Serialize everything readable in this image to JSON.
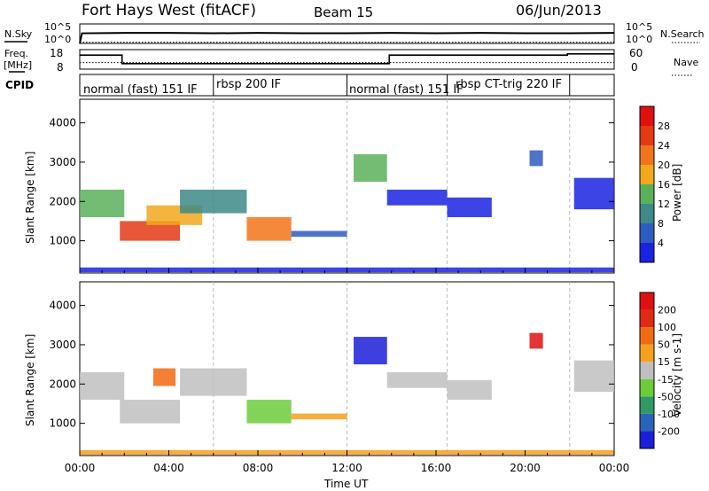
{
  "header": {
    "title": "Fort Hays West (fitACF)",
    "beam": "Beam 15",
    "date": "06/Jun/2013"
  },
  "strip_labels": {
    "nsky": "N.Sky",
    "nsearch": "N.Search",
    "freq": "Freq.",
    "freq_unit": "[MHz]",
    "nave": "Nave",
    "cpid": "CPID",
    "noise_ticks_left": [
      "10^5",
      "10^0"
    ],
    "noise_ticks_right": [
      "10^5",
      "10^0"
    ],
    "freq_ticks": [
      "18",
      "8"
    ],
    "nave_ticks": [
      "60",
      "0"
    ]
  },
  "cpid_segments": [
    {
      "label": "normal (fast) 151 IF",
      "start_h": 0,
      "end_h": 6
    },
    {
      "label": "rbsp 200 IF",
      "start_h": 6,
      "end_h": 12
    },
    {
      "label": "normal (fast) 151 IF",
      "start_h": 12,
      "end_h": 16.5
    },
    {
      "label": "rbsp CT-trig 220 IF",
      "start_h": 16.5,
      "end_h": 22
    },
    {
      "label": "",
      "start_h": 22,
      "end_h": 24
    }
  ],
  "chart_data": [
    {
      "type": "line",
      "name": "noise",
      "x_range_h": [
        0,
        24
      ],
      "series": [
        {
          "name": "N.Sky",
          "x_h": [
            0,
            0.1,
            2,
            4,
            6,
            8,
            10,
            12,
            14,
            16,
            18,
            20,
            22,
            24
          ],
          "log10": [
            0,
            2.6,
            2.7,
            2.7,
            2.6,
            2.7,
            2.6,
            2.6,
            2.7,
            2.6,
            2.7,
            2.6,
            2.6,
            2.7
          ]
        },
        {
          "name": "N.Search",
          "x_h": [
            0,
            24
          ],
          "log10": [
            0.3,
            0.3
          ]
        }
      ]
    },
    {
      "type": "line",
      "name": "freq_nave",
      "x_range_h": [
        0,
        24
      ],
      "series": [
        {
          "name": "Freq.",
          "ylim": [
            8,
            18
          ],
          "x_h": [
            0,
            1.9,
            1.9,
            13.9,
            13.9,
            21.9,
            21.9,
            24
          ],
          "values": [
            15.2,
            15.2,
            10.8,
            10.8,
            15.2,
            15.2,
            15.8,
            15.8
          ]
        },
        {
          "name": "Nave",
          "ylim": [
            0,
            60
          ],
          "x_h": [
            0,
            24
          ],
          "values": [
            20,
            20
          ]
        }
      ]
    },
    {
      "type": "heatmap",
      "name": "power",
      "title": "",
      "xlabel": "Time UT",
      "ylabel": "Slant Range [km]",
      "xlim_h": [
        0,
        24
      ],
      "ylim_km": [
        180,
        4600
      ],
      "x_ticks": [
        "00:00",
        "04:00",
        "08:00",
        "12:00",
        "16:00",
        "20:00",
        "00:00"
      ],
      "y_ticks": [
        1000,
        2000,
        3000,
        4000
      ],
      "colorbar": {
        "label": "Power [dB]",
        "ticks": [
          "4",
          "8",
          "12",
          "16",
          "20",
          "24",
          "28"
        ],
        "colors": [
          "#1a23e0",
          "#2e5cc0",
          "#3d8a88",
          "#5bb05a",
          "#f1a81c",
          "#f2741a",
          "#e43a14",
          "#e01010"
        ]
      },
      "echo_regions": [
        {
          "t0": 0.0,
          "t1": 2.0,
          "r0": 1600,
          "r1": 2300,
          "level": 3
        },
        {
          "t0": 1.8,
          "t1": 4.5,
          "r0": 1000,
          "r1": 1500,
          "level": 6
        },
        {
          "t0": 3.0,
          "t1": 5.5,
          "r0": 1400,
          "r1": 1900,
          "level": 4
        },
        {
          "t0": 4.5,
          "t1": 7.5,
          "r0": 1700,
          "r1": 2300,
          "level": 2
        },
        {
          "t0": 7.5,
          "t1": 9.5,
          "r0": 1000,
          "r1": 1600,
          "level": 5
        },
        {
          "t0": 9.5,
          "t1": 12.0,
          "r0": 1100,
          "r1": 1250,
          "level": 1
        },
        {
          "t0": 12.3,
          "t1": 13.8,
          "r0": 2500,
          "r1": 3200,
          "level": 3
        },
        {
          "t0": 13.8,
          "t1": 16.5,
          "r0": 1900,
          "r1": 2300,
          "level": 0
        },
        {
          "t0": 16.5,
          "t1": 18.5,
          "r0": 1600,
          "r1": 2100,
          "level": 0
        },
        {
          "t0": 20.2,
          "t1": 20.8,
          "r0": 2900,
          "r1": 3300,
          "level": 1
        },
        {
          "t0": 22.2,
          "t1": 24.0,
          "r0": 1800,
          "r1": 2600,
          "level": 0
        },
        {
          "t0": 0.0,
          "t1": 24.0,
          "r0": 200,
          "r1": 320,
          "level": 0
        }
      ]
    },
    {
      "type": "heatmap",
      "name": "velocity",
      "title": "",
      "xlabel": "Time UT",
      "ylabel": "Slant Range [km]",
      "xlim_h": [
        0,
        24
      ],
      "ylim_km": [
        180,
        4600
      ],
      "x_ticks": [
        "00:00",
        "04:00",
        "08:00",
        "12:00",
        "16:00",
        "20:00",
        "00:00"
      ],
      "y_ticks": [
        1000,
        2000,
        3000,
        4000
      ],
      "colorbar": {
        "label": "Velocity [m s-1]",
        "ticks": [
          "200",
          "100",
          "50",
          "15",
          "-15",
          "-50",
          "-100",
          "-200"
        ],
        "colors": [
          "#1c1fd8",
          "#2a64b8",
          "#2f9a66",
          "#6ccc3c",
          "#bfbfbf",
          "#f5a020",
          "#f26a12",
          "#e02a14",
          "#e01010"
        ]
      },
      "echo_regions": [
        {
          "t0": 0.0,
          "t1": 2.0,
          "r0": 1600,
          "r1": 2300,
          "level": 4
        },
        {
          "t0": 1.8,
          "t1": 4.5,
          "r0": 1000,
          "r1": 1600,
          "level": 4
        },
        {
          "t0": 3.3,
          "t1": 4.3,
          "r0": 1950,
          "r1": 2400,
          "level": 6
        },
        {
          "t0": 4.5,
          "t1": 7.5,
          "r0": 1700,
          "r1": 2400,
          "level": 4
        },
        {
          "t0": 7.5,
          "t1": 9.5,
          "r0": 1000,
          "r1": 1600,
          "level": 3
        },
        {
          "t0": 9.5,
          "t1": 12.0,
          "r0": 1100,
          "r1": 1250,
          "level": 5
        },
        {
          "t0": 12.3,
          "t1": 13.8,
          "r0": 2500,
          "r1": 3200,
          "level": 0
        },
        {
          "t0": 13.8,
          "t1": 16.5,
          "r0": 1900,
          "r1": 2300,
          "level": 4
        },
        {
          "t0": 16.5,
          "t1": 18.5,
          "r0": 1600,
          "r1": 2100,
          "level": 4
        },
        {
          "t0": 20.2,
          "t1": 20.8,
          "r0": 2900,
          "r1": 3300,
          "level": 8
        },
        {
          "t0": 22.2,
          "t1": 24.0,
          "r0": 1800,
          "r1": 2600,
          "level": 4
        },
        {
          "t0": 0.0,
          "t1": 24.0,
          "r0": 200,
          "r1": 320,
          "level": 5
        }
      ]
    }
  ]
}
